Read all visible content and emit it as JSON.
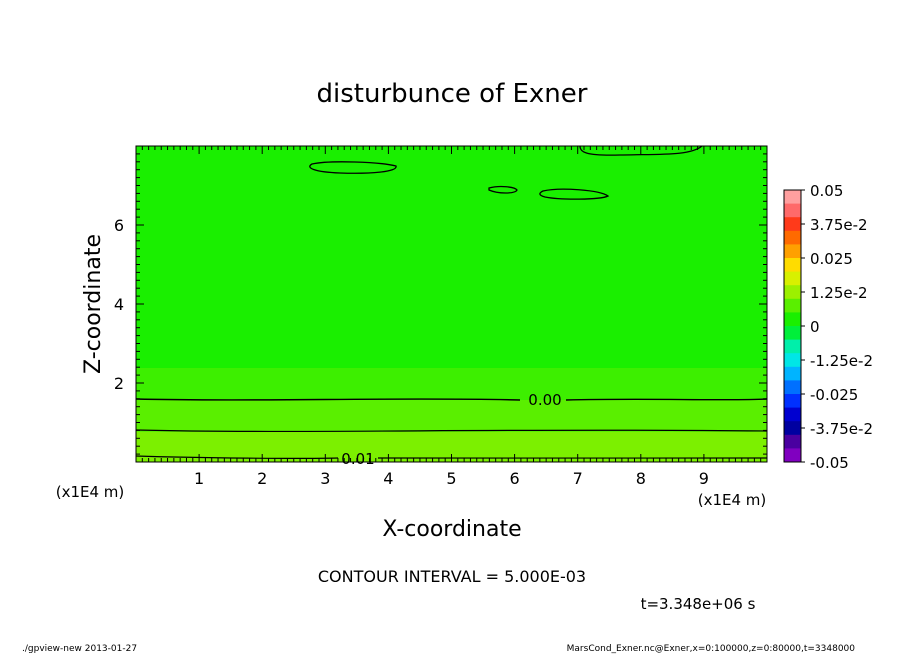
{
  "chart_data": {
    "type": "heatmap",
    "title": "disturbunce of Exner",
    "xlabel": "X-coordinate",
    "ylabel": "Z-coordinate",
    "x_unit": "(x1E4 m)",
    "y_unit": "(x1E4 m)",
    "xlim": [
      0,
      10
    ],
    "ylim": [
      0,
      8
    ],
    "x_ticks": [
      "1",
      "2",
      "3",
      "4",
      "5",
      "6",
      "7",
      "8",
      "9"
    ],
    "y_ticks": [
      "2",
      "4",
      "6"
    ],
    "grid": false,
    "colorbar": {
      "labels": [
        "0.05",
        "3.75e-2",
        "0.025",
        "1.25e-2",
        "0",
        "-1.25e-2",
        "-0.025",
        "-3.75e-2",
        "-0.05"
      ],
      "colors": [
        "#ff9f9f",
        "#ff6a6a",
        "#ff3a1a",
        "#ff6a00",
        "#ffa000",
        "#ffdc00",
        "#d8f000",
        "#9cf000",
        "#5aef00",
        "#1aef00",
        "#00ef3a",
        "#00efaa",
        "#00e6e6",
        "#00b4ff",
        "#0070ff",
        "#0030ff",
        "#0000d0",
        "#0000a0",
        "#4a00a0",
        "#8000c0"
      ]
    },
    "contour_labels": [
      {
        "text": "0.00",
        "x": 6.6,
        "z": 1.55
      },
      {
        "text": "0.01",
        "x": 3.6,
        "z": 0.05
      }
    ],
    "contour_interval_text": "CONTOUR INTERVAL = 5.000E-03",
    "time_text": "t=3.348e+06 s"
  },
  "footer": {
    "left": "./gpview-new  2013-01-27",
    "right": "MarsCond_Exner.nc@Exner,x=0:100000,z=0:80000,t=3348000"
  }
}
